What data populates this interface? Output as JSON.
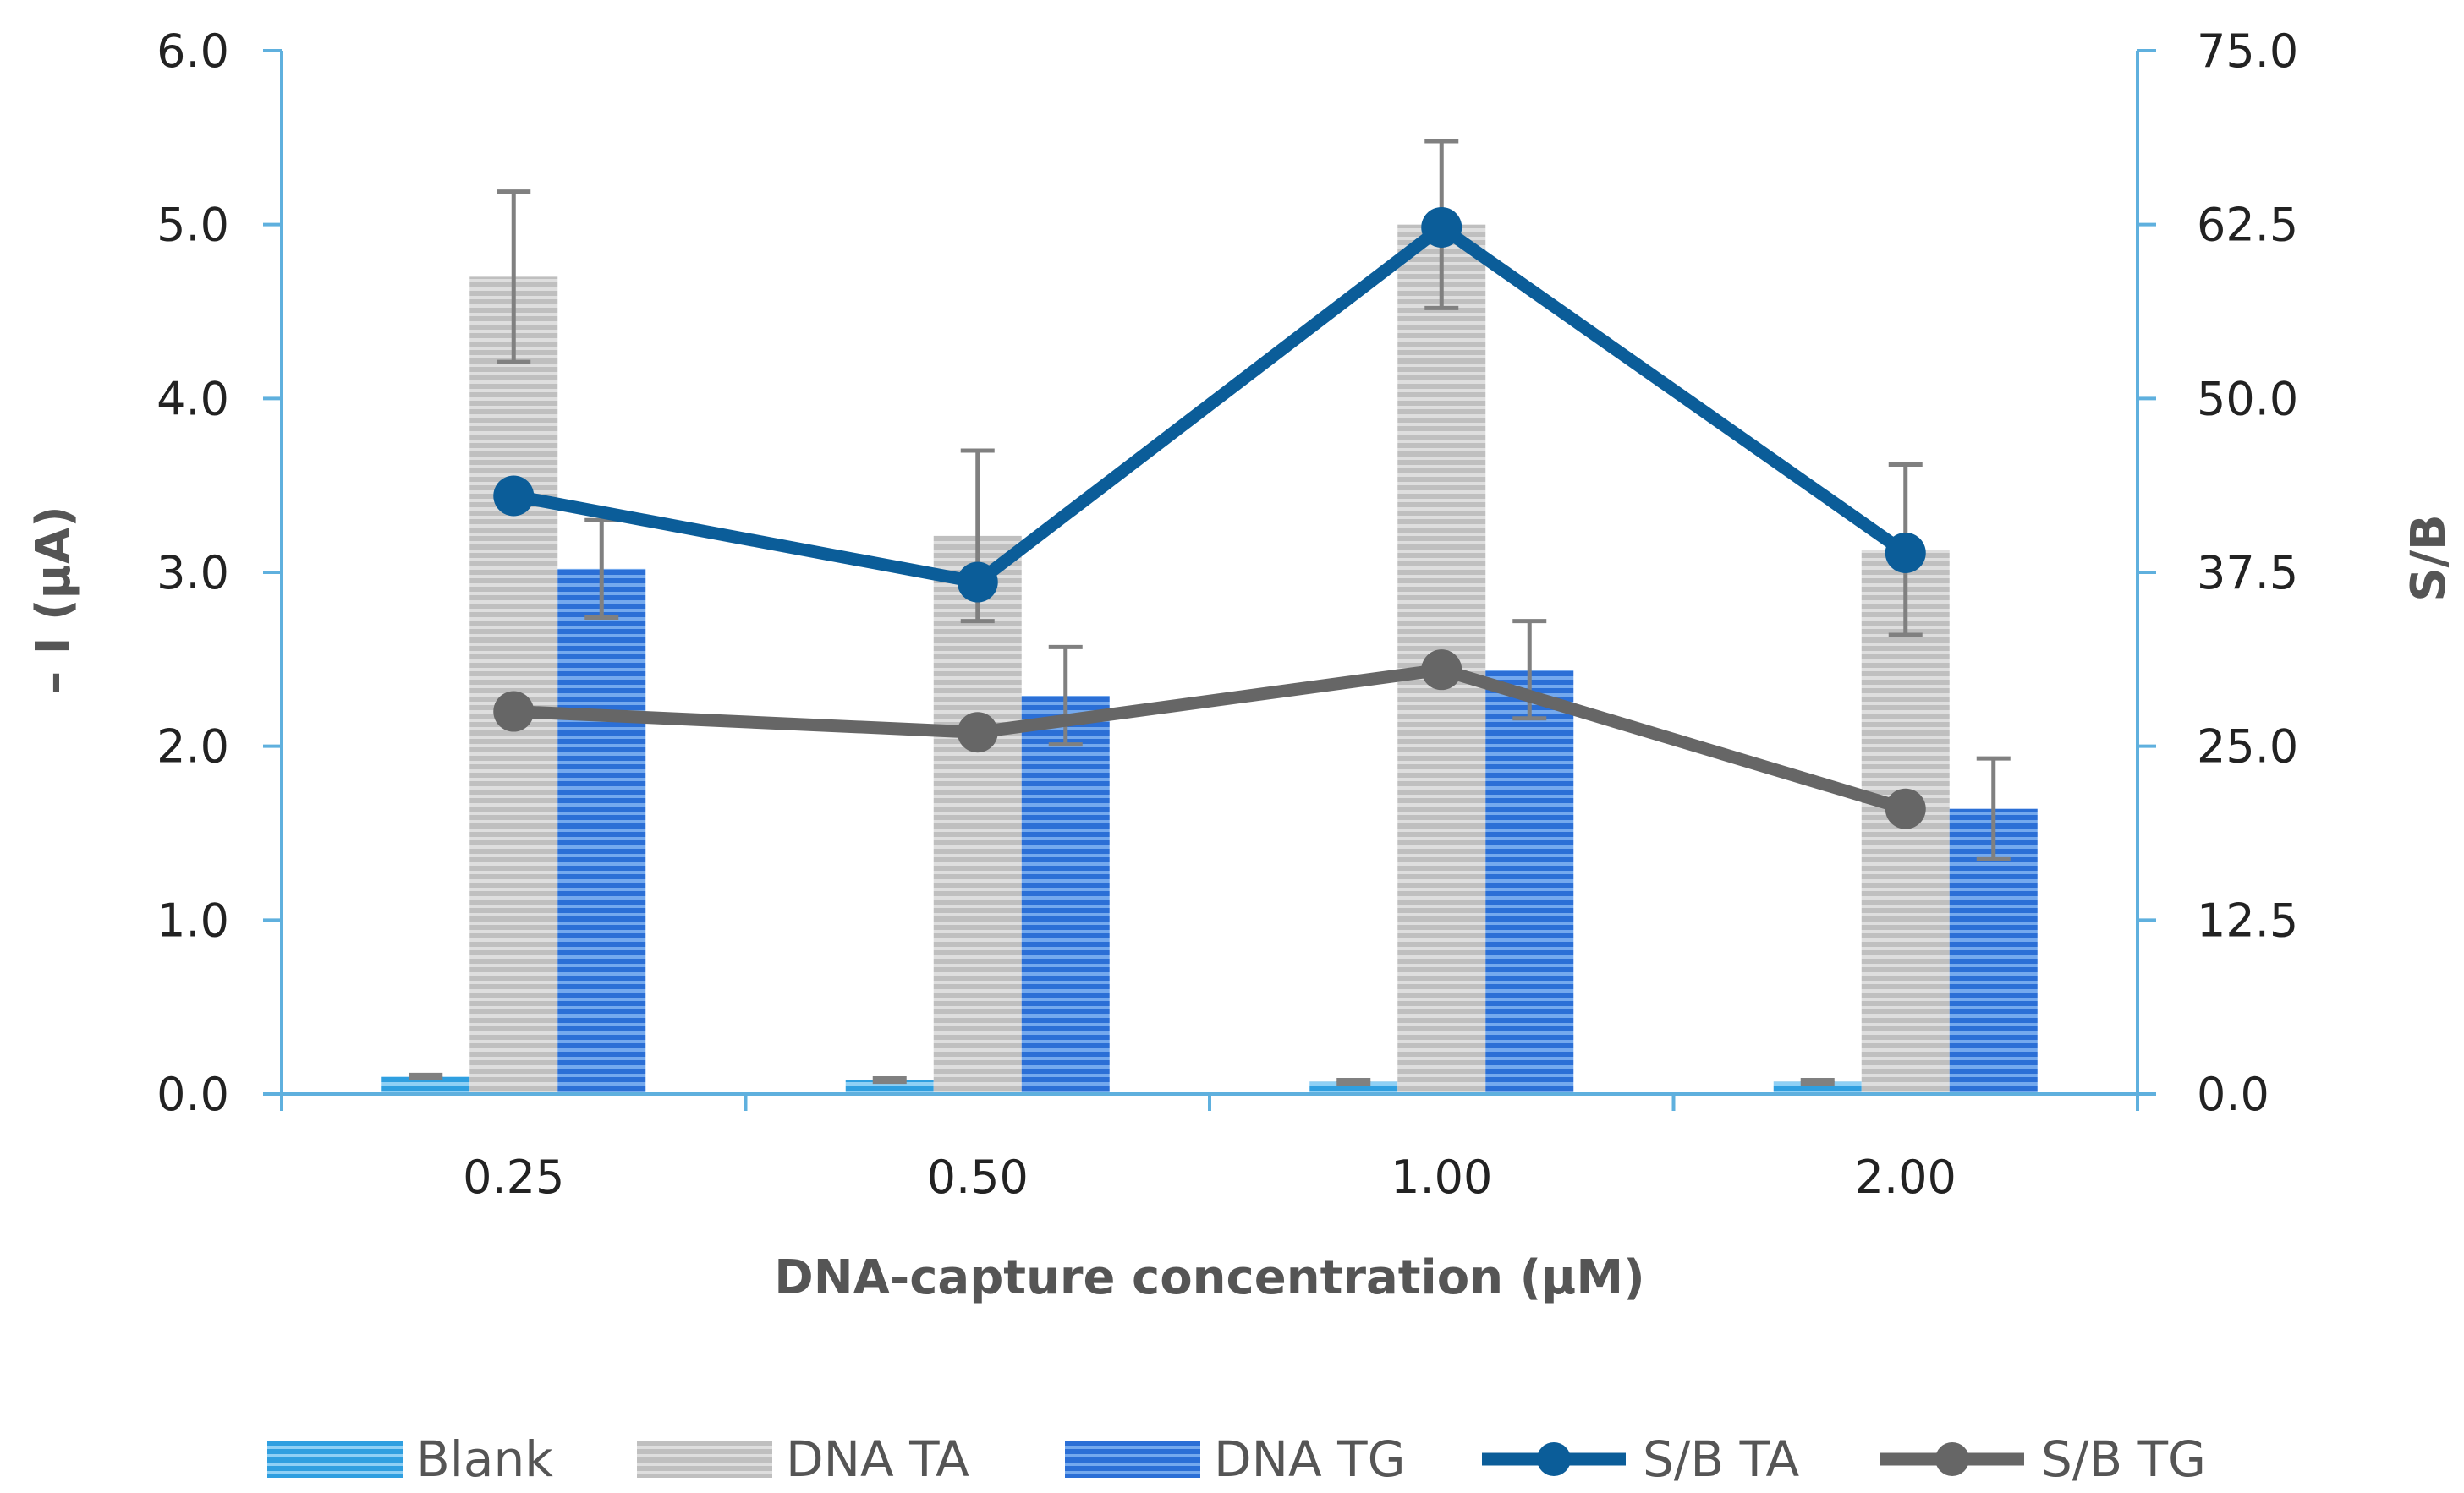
{
  "chart_data": {
    "type": "bar",
    "categories": [
      "0.25",
      "0.50",
      "1.00",
      "2.00"
    ],
    "xlabel": "DNA-capture concentration (μM)",
    "ylabel": "– I (μA)",
    "y2label": "S/B",
    "ylim": [
      0,
      6
    ],
    "y2lim": [
      0,
      75
    ],
    "yticks": [
      "0.0",
      "1.0",
      "2.0",
      "3.0",
      "4.0",
      "5.0",
      "6.0"
    ],
    "y2ticks": [
      "0.0",
      "12.5",
      "25.0",
      "37.5",
      "50.0",
      "62.5",
      "75.0"
    ],
    "grid": false,
    "legend_position": "bottom",
    "bar_series": [
      {
        "name": "Blank",
        "values": [
          0.1,
          0.08,
          0.07,
          0.07
        ],
        "errors": [
          0.01,
          0.01,
          0.01,
          0.01
        ],
        "color": "#2f9fe0",
        "pattern": "hstripe-blue-light"
      },
      {
        "name": "DNA TA",
        "values": [
          4.7,
          3.21,
          5.0,
          3.13
        ],
        "errors": [
          0.49,
          0.49,
          0.48,
          0.49
        ],
        "color": "#a6a6a6",
        "pattern": "hstripe-gray"
      },
      {
        "name": "DNA TG",
        "values": [
          3.02,
          2.29,
          2.44,
          1.64
        ],
        "errors": [
          0.28,
          0.28,
          0.28,
          0.29
        ],
        "color": "#2b6fd6",
        "pattern": "hstripe-blue"
      }
    ],
    "line_series": [
      {
        "name": "S/B TA",
        "values": [
          43.0,
          36.8,
          62.3,
          38.9
        ],
        "axis": "right",
        "color": "#0b5d99"
      },
      {
        "name": "S/B TG",
        "values": [
          27.5,
          26.0,
          30.5,
          20.5
        ],
        "axis": "right",
        "color": "#666666"
      }
    ],
    "axis_color": "#5fb0de"
  }
}
